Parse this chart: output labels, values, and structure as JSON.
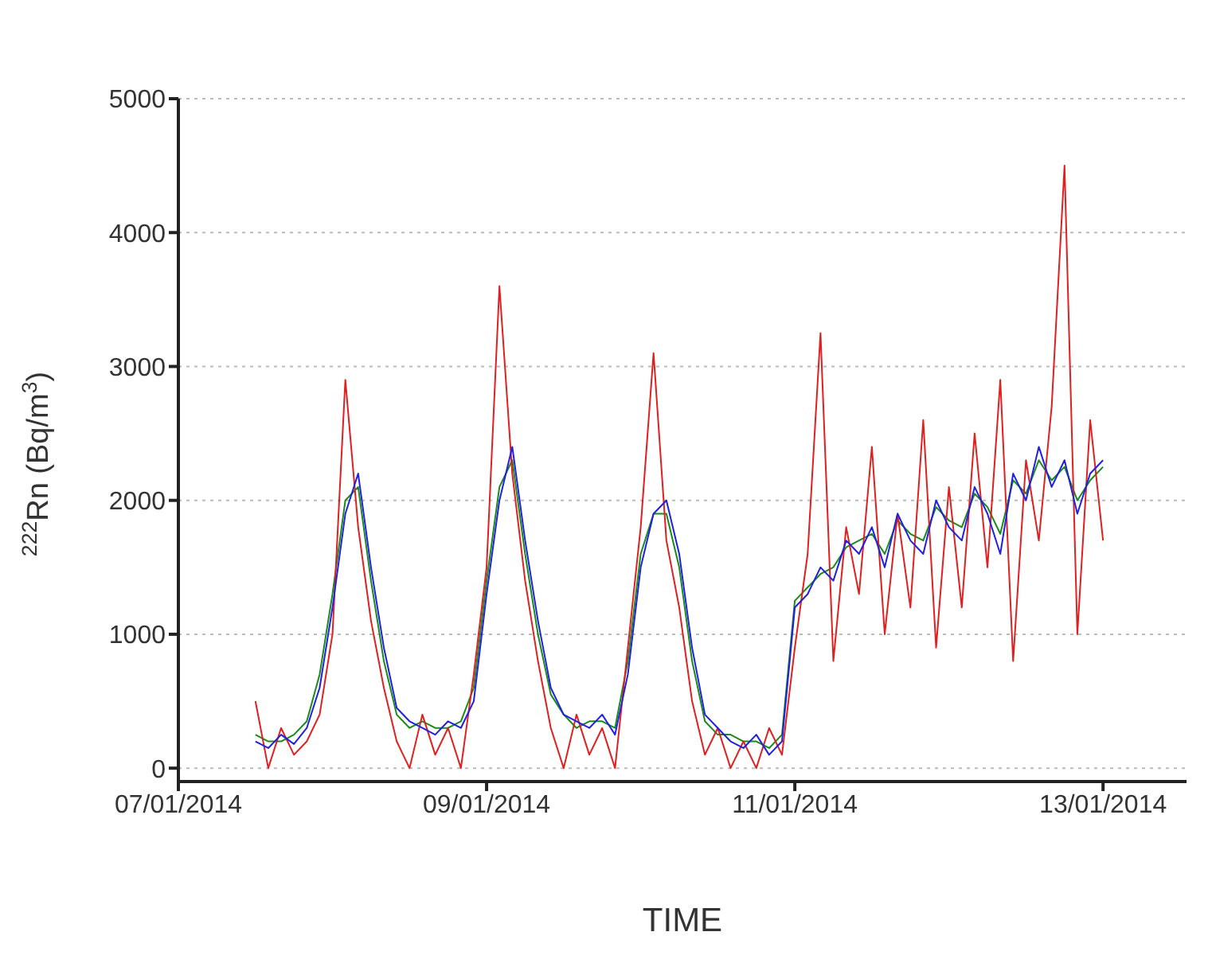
{
  "chart_data": {
    "type": "line",
    "xlabel": "TIME",
    "ylabel": "$^{222}$Rn (Bq/m$^{3}$)",
    "x": [
      "2014-01-07T12:00",
      "2014-01-07T14:00",
      "2014-01-07T16:00",
      "2014-01-07T18:00",
      "2014-01-07T20:00",
      "2014-01-07T22:00",
      "2014-01-08T00:00",
      "2014-01-08T02:00",
      "2014-01-08T04:00",
      "2014-01-08T06:00",
      "2014-01-08T08:00",
      "2014-01-08T10:00",
      "2014-01-08T12:00",
      "2014-01-08T14:00",
      "2014-01-08T16:00",
      "2014-01-08T18:00",
      "2014-01-08T20:00",
      "2014-01-08T22:00",
      "2014-01-09T00:00",
      "2014-01-09T02:00",
      "2014-01-09T04:00",
      "2014-01-09T06:00",
      "2014-01-09T08:00",
      "2014-01-09T10:00",
      "2014-01-09T12:00",
      "2014-01-09T14:00",
      "2014-01-09T16:00",
      "2014-01-09T18:00",
      "2014-01-09T20:00",
      "2014-01-09T22:00",
      "2014-01-10T00:00",
      "2014-01-10T02:00",
      "2014-01-10T04:00",
      "2014-01-10T06:00",
      "2014-01-10T08:00",
      "2014-01-10T10:00",
      "2014-01-10T12:00",
      "2014-01-10T14:00",
      "2014-01-10T16:00",
      "2014-01-10T18:00",
      "2014-01-10T20:00",
      "2014-01-10T22:00",
      "2014-01-11T00:00",
      "2014-01-11T02:00",
      "2014-01-11T04:00",
      "2014-01-11T06:00",
      "2014-01-11T08:00",
      "2014-01-11T10:00",
      "2014-01-11T12:00",
      "2014-01-11T14:00",
      "2014-01-11T16:00",
      "2014-01-11T18:00",
      "2014-01-11T20:00",
      "2014-01-11T22:00",
      "2014-01-12T00:00",
      "2014-01-12T02:00",
      "2014-01-12T04:00",
      "2014-01-12T06:00",
      "2014-01-12T08:00",
      "2014-01-12T10:00",
      "2014-01-12T12:00",
      "2014-01-12T14:00",
      "2014-01-12T16:00",
      "2014-01-12T18:00",
      "2014-01-12T20:00",
      "2014-01-12T22:00",
      "2014-01-13T00:00"
    ],
    "series": [
      {
        "color": "#1a8a1a",
        "values": [
          250,
          200,
          200,
          250,
          350,
          700,
          1300,
          2000,
          2100,
          1400,
          800,
          400,
          300,
          350,
          300,
          300,
          350,
          600,
          1400,
          2100,
          2300,
          1600,
          1000,
          550,
          400,
          300,
          350,
          350,
          300,
          800,
          1600,
          1900,
          1900,
          1500,
          800,
          350,
          250,
          250,
          200,
          200,
          150,
          250,
          1250,
          1350,
          1450,
          1500,
          1650,
          1700,
          1750,
          1600,
          1850,
          1750,
          1700,
          1950,
          1850,
          1800,
          2050,
          1950,
          1750,
          2150,
          2050,
          2300,
          2150,
          2250,
          2000,
          2150,
          2250
        ]
      },
      {
        "color": "#e02020",
        "values": [
          500,
          0,
          300,
          100,
          200,
          400,
          1000,
          2900,
          1800,
          1100,
          600,
          200,
          0,
          400,
          100,
          300,
          0,
          700,
          1500,
          3600,
          2200,
          1400,
          800,
          300,
          0,
          400,
          100,
          300,
          0,
          900,
          1800,
          3100,
          1700,
          1200,
          500,
          100,
          300,
          0,
          200,
          0,
          300,
          100,
          900,
          1600,
          3250,
          800,
          1800,
          1300,
          2400,
          1000,
          1900,
          1200,
          2600,
          900,
          2100,
          1200,
          2500,
          1500,
          2900,
          800,
          2300,
          1700,
          2700,
          4500,
          1000,
          2600,
          1700
        ]
      },
      {
        "color": "#2020e0",
        "values": [
          200,
          150,
          250,
          180,
          300,
          600,
          1200,
          1900,
          2200,
          1500,
          900,
          450,
          350,
          300,
          250,
          350,
          300,
          500,
          1300,
          2000,
          2400,
          1700,
          1100,
          600,
          400,
          350,
          300,
          400,
          250,
          700,
          1500,
          1900,
          2000,
          1600,
          900,
          400,
          300,
          200,
          150,
          250,
          100,
          200,
          1200,
          1300,
          1500,
          1400,
          1700,
          1600,
          1800,
          1500,
          1900,
          1700,
          1600,
          2000,
          1800,
          1700,
          2100,
          1900,
          1600,
          2200,
          2000,
          2400,
          2100,
          2300,
          1900,
          2200,
          2300
        ]
      }
    ],
    "xlim": [
      "2014-01-07",
      "2014-01-13T13:00"
    ],
    "xticks": [
      {
        "value": "2014-01-07",
        "label": "07/01/2014"
      },
      {
        "value": "2014-01-09",
        "label": "09/01/2014"
      },
      {
        "value": "2014-01-11",
        "label": "11/01/2014"
      },
      {
        "value": "2014-01-13",
        "label": "13/01/2014"
      }
    ],
    "ylim": [
      -100,
      5000
    ],
    "yticks": [
      0,
      1000,
      2000,
      3000,
      4000,
      5000
    ],
    "grid": "y",
    "marker": "none",
    "line_style": "solid"
  }
}
